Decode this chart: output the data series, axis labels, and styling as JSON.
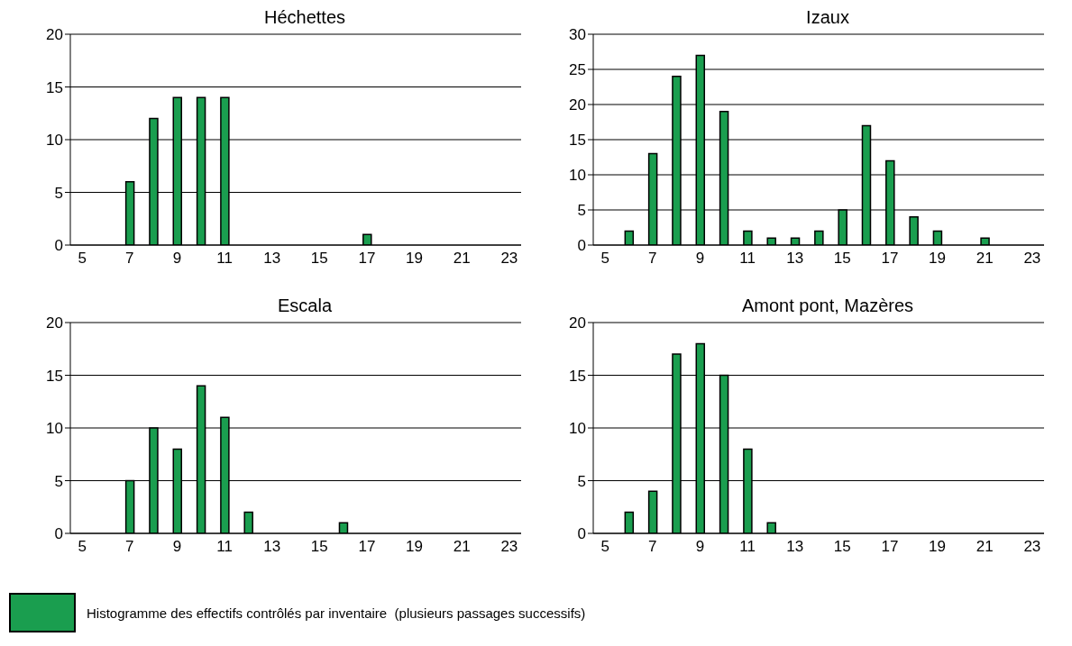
{
  "chart_data": [
    {
      "type": "bar",
      "title": "Héchettes",
      "categories": [
        "5",
        null,
        "7",
        null,
        "9",
        null,
        "11",
        null,
        "13",
        null,
        "15",
        null,
        "17",
        null,
        "19",
        null,
        "21",
        null,
        "23"
      ],
      "series": [
        {
          "color": "#1a9e4f",
          "values": [
            0,
            0,
            6,
            12,
            14,
            14,
            14,
            0,
            0,
            0,
            0,
            0,
            1,
            0,
            0,
            0,
            0,
            0,
            0
          ]
        }
      ],
      "ylim": [
        0,
        20
      ],
      "yticks": [
        0,
        5,
        10,
        15,
        20
      ],
      "grid": "y"
    },
    {
      "type": "bar",
      "title": "Izaux",
      "categories": [
        "5",
        null,
        "7",
        null,
        "9",
        null,
        "11",
        null,
        "13",
        null,
        "15",
        null,
        "17",
        null,
        "19",
        null,
        "21",
        null,
        "23"
      ],
      "series": [
        {
          "color": "#1a9e4f",
          "values": [
            0,
            2,
            13,
            24,
            27,
            19,
            2,
            1,
            1,
            2,
            5,
            17,
            12,
            4,
            2,
            0,
            1,
            0,
            0
          ]
        }
      ],
      "ylim": [
        0,
        30
      ],
      "yticks": [
        0,
        5,
        10,
        15,
        20,
        25,
        30
      ],
      "grid": "y"
    },
    {
      "type": "bar",
      "title": "Escala",
      "categories": [
        "5",
        null,
        "7",
        null,
        "9",
        null,
        "11",
        null,
        "13",
        null,
        "15",
        null,
        "17",
        null,
        "19",
        null,
        "21",
        null,
        "23"
      ],
      "series": [
        {
          "color": "#1a9e4f",
          "values": [
            0,
            0,
            5,
            10,
            8,
            14,
            11,
            2,
            0,
            0,
            0,
            1,
            0,
            0,
            0,
            0,
            0,
            0,
            0
          ]
        }
      ],
      "ylim": [
        0,
        20
      ],
      "yticks": [
        0,
        5,
        10,
        15,
        20
      ],
      "grid": "y"
    },
    {
      "type": "bar",
      "title": "Amont pont, Mazères",
      "categories": [
        "5",
        null,
        "7",
        null,
        "9",
        null,
        "11",
        null,
        "13",
        null,
        "15",
        null,
        "17",
        null,
        "19",
        null,
        "21",
        null,
        "23"
      ],
      "series": [
        {
          "name": "Histogramme des effectifs contrôlés par inventaire  (plusieurs passages successifs)",
          "color": "#1a9e4f",
          "values": [
            0,
            2,
            4,
            17,
            18,
            15,
            8,
            1,
            0,
            0,
            0,
            0,
            0,
            0,
            0,
            0,
            0,
            0,
            0
          ]
        }
      ],
      "ylim": [
        0,
        20
      ],
      "yticks": [
        0,
        5,
        10,
        15,
        20
      ],
      "grid": "y",
      "legend": "bottom"
    }
  ]
}
